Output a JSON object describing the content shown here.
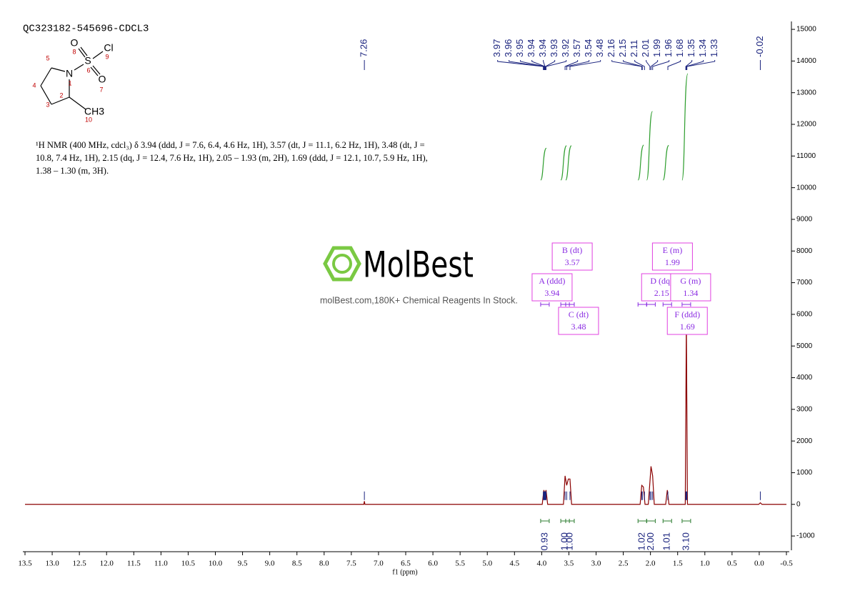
{
  "chart_data": {
    "type": "line",
    "title": "QC323182-545696-CDCL3",
    "xlabel": "f1 (ppm)",
    "description": "¹H NMR (400 MHz, cdcl₃) δ 3.94 (ddd, J = 7.6, 6.4, 4.6 Hz, 1H), 3.57 (dt, J = 11.1, 6.2 Hz, 1H), 3.48 (dt, J = 10.8, 7.4 Hz, 1H), 2.15 (dq, J = 12.4, 7.6 Hz, 1H), 2.05 – 1.93 (m, 2H), 1.69 (ddd, J = 12.1, 10.7, 5.9 Hz, 1H), 1.38 – 1.30 (m, 3H).",
    "xlim": [
      13.5,
      -0.5
    ],
    "xticks": [
      13.5,
      {
        "value": 13,
        "label": "13.0"
      },
      12.5,
      {
        "value": 12,
        "label": "12.0"
      },
      11.5,
      {
        "value": 11,
        "label": "11.0"
      },
      10.5,
      {
        "value": 10,
        "label": "10.0"
      },
      9.5,
      {
        "value": 9,
        "label": "9.0"
      },
      8.5,
      {
        "value": 8,
        "label": "8.0"
      },
      7.5,
      {
        "value": 7,
        "label": "7.0"
      },
      6.5,
      {
        "value": 6,
        "label": "6.0"
      },
      5.5,
      {
        "value": 5,
        "label": "5.0"
      },
      4.5,
      {
        "value": 4,
        "label": "4.0"
      },
      3.5,
      {
        "value": 3,
        "label": "3.0"
      },
      2.5,
      {
        "value": 2,
        "label": "2.0"
      },
      1.5,
      {
        "value": 1,
        "label": "1.0"
      },
      0.5,
      {
        "value": 0,
        "label": "0.0"
      },
      -0.5
    ],
    "ylim": [
      -1450,
      15250
    ],
    "yticks": [
      -1000,
      0,
      1000,
      2000,
      3000,
      4000,
      5000,
      6000,
      7000,
      8000,
      9000,
      10000,
      11000,
      12000,
      13000,
      14000,
      15000
    ],
    "series": [
      {
        "color": "#8b0000",
        "x": [
          13.5,
          7.27,
          7.26,
          7.25,
          3.99,
          3.96,
          3.94,
          3.92,
          3.89,
          3.6,
          3.57,
          3.54,
          3.51,
          3.48,
          3.45,
          2.19,
          2.16,
          2.13,
          2.1,
          2.04,
          2.01,
          1.99,
          1.96,
          1.93,
          1.72,
          1.69,
          1.66,
          1.36,
          1.34,
          1.32,
          0.01,
          -0.02,
          -0.05,
          -0.5
        ],
        "values": [
          0,
          0,
          100,
          0,
          0,
          450,
          300,
          450,
          0,
          0,
          900,
          600,
          800,
          800,
          0,
          0,
          600,
          550,
          0,
          0,
          700,
          1200,
          900,
          0,
          0,
          450,
          0,
          0,
          5800,
          0,
          0,
          50,
          0,
          0
        ]
      }
    ],
    "peak_labels": [
      7.26,
      3.97,
      3.96,
      3.95,
      3.94,
      3.94,
      3.93,
      3.92,
      3.57,
      3.54,
      3.48,
      2.16,
      2.15,
      2.11,
      2.01,
      1.99,
      1.96,
      1.68,
      1.35,
      1.34,
      1.33,
      -0.02
    ],
    "multiplets": [
      {
        "label": "A (ddd)",
        "shift": 3.94
      },
      {
        "label": "B (dt)",
        "shift": 3.57
      },
      {
        "label": "C (dt)",
        "shift": 3.48
      },
      {
        "label": "D (dq)",
        "shift": 2.15
      },
      {
        "label": "E (m)",
        "shift": 1.99
      },
      {
        "label": "F (ddd)",
        "shift": 1.69
      },
      {
        "label": "G (m)",
        "shift": 1.34
      }
    ],
    "integrals": {
      "x": [
        3.94,
        3.57,
        3.48,
        2.15,
        1.99,
        1.69,
        1.34
      ],
      "values": [
        0.93,
        1,
        1,
        1.02,
        2,
        1.01,
        3.1
      ],
      "value_labels": [
        "0.93",
        "1.00",
        "1.00",
        "1.02",
        "2.00",
        "1.01",
        "3.10"
      ]
    }
  },
  "structure": {
    "atoms": [
      "O",
      "S",
      "Cl",
      "O",
      "N",
      "CH3"
    ],
    "numbers": [
      8,
      6,
      9,
      7,
      1,
      10,
      5,
      4,
      3,
      2
    ]
  },
  "watermark": {
    "brand": "MolBest",
    "tagline": "molBest.com,180K+ Chemical Reagents In Stock."
  }
}
